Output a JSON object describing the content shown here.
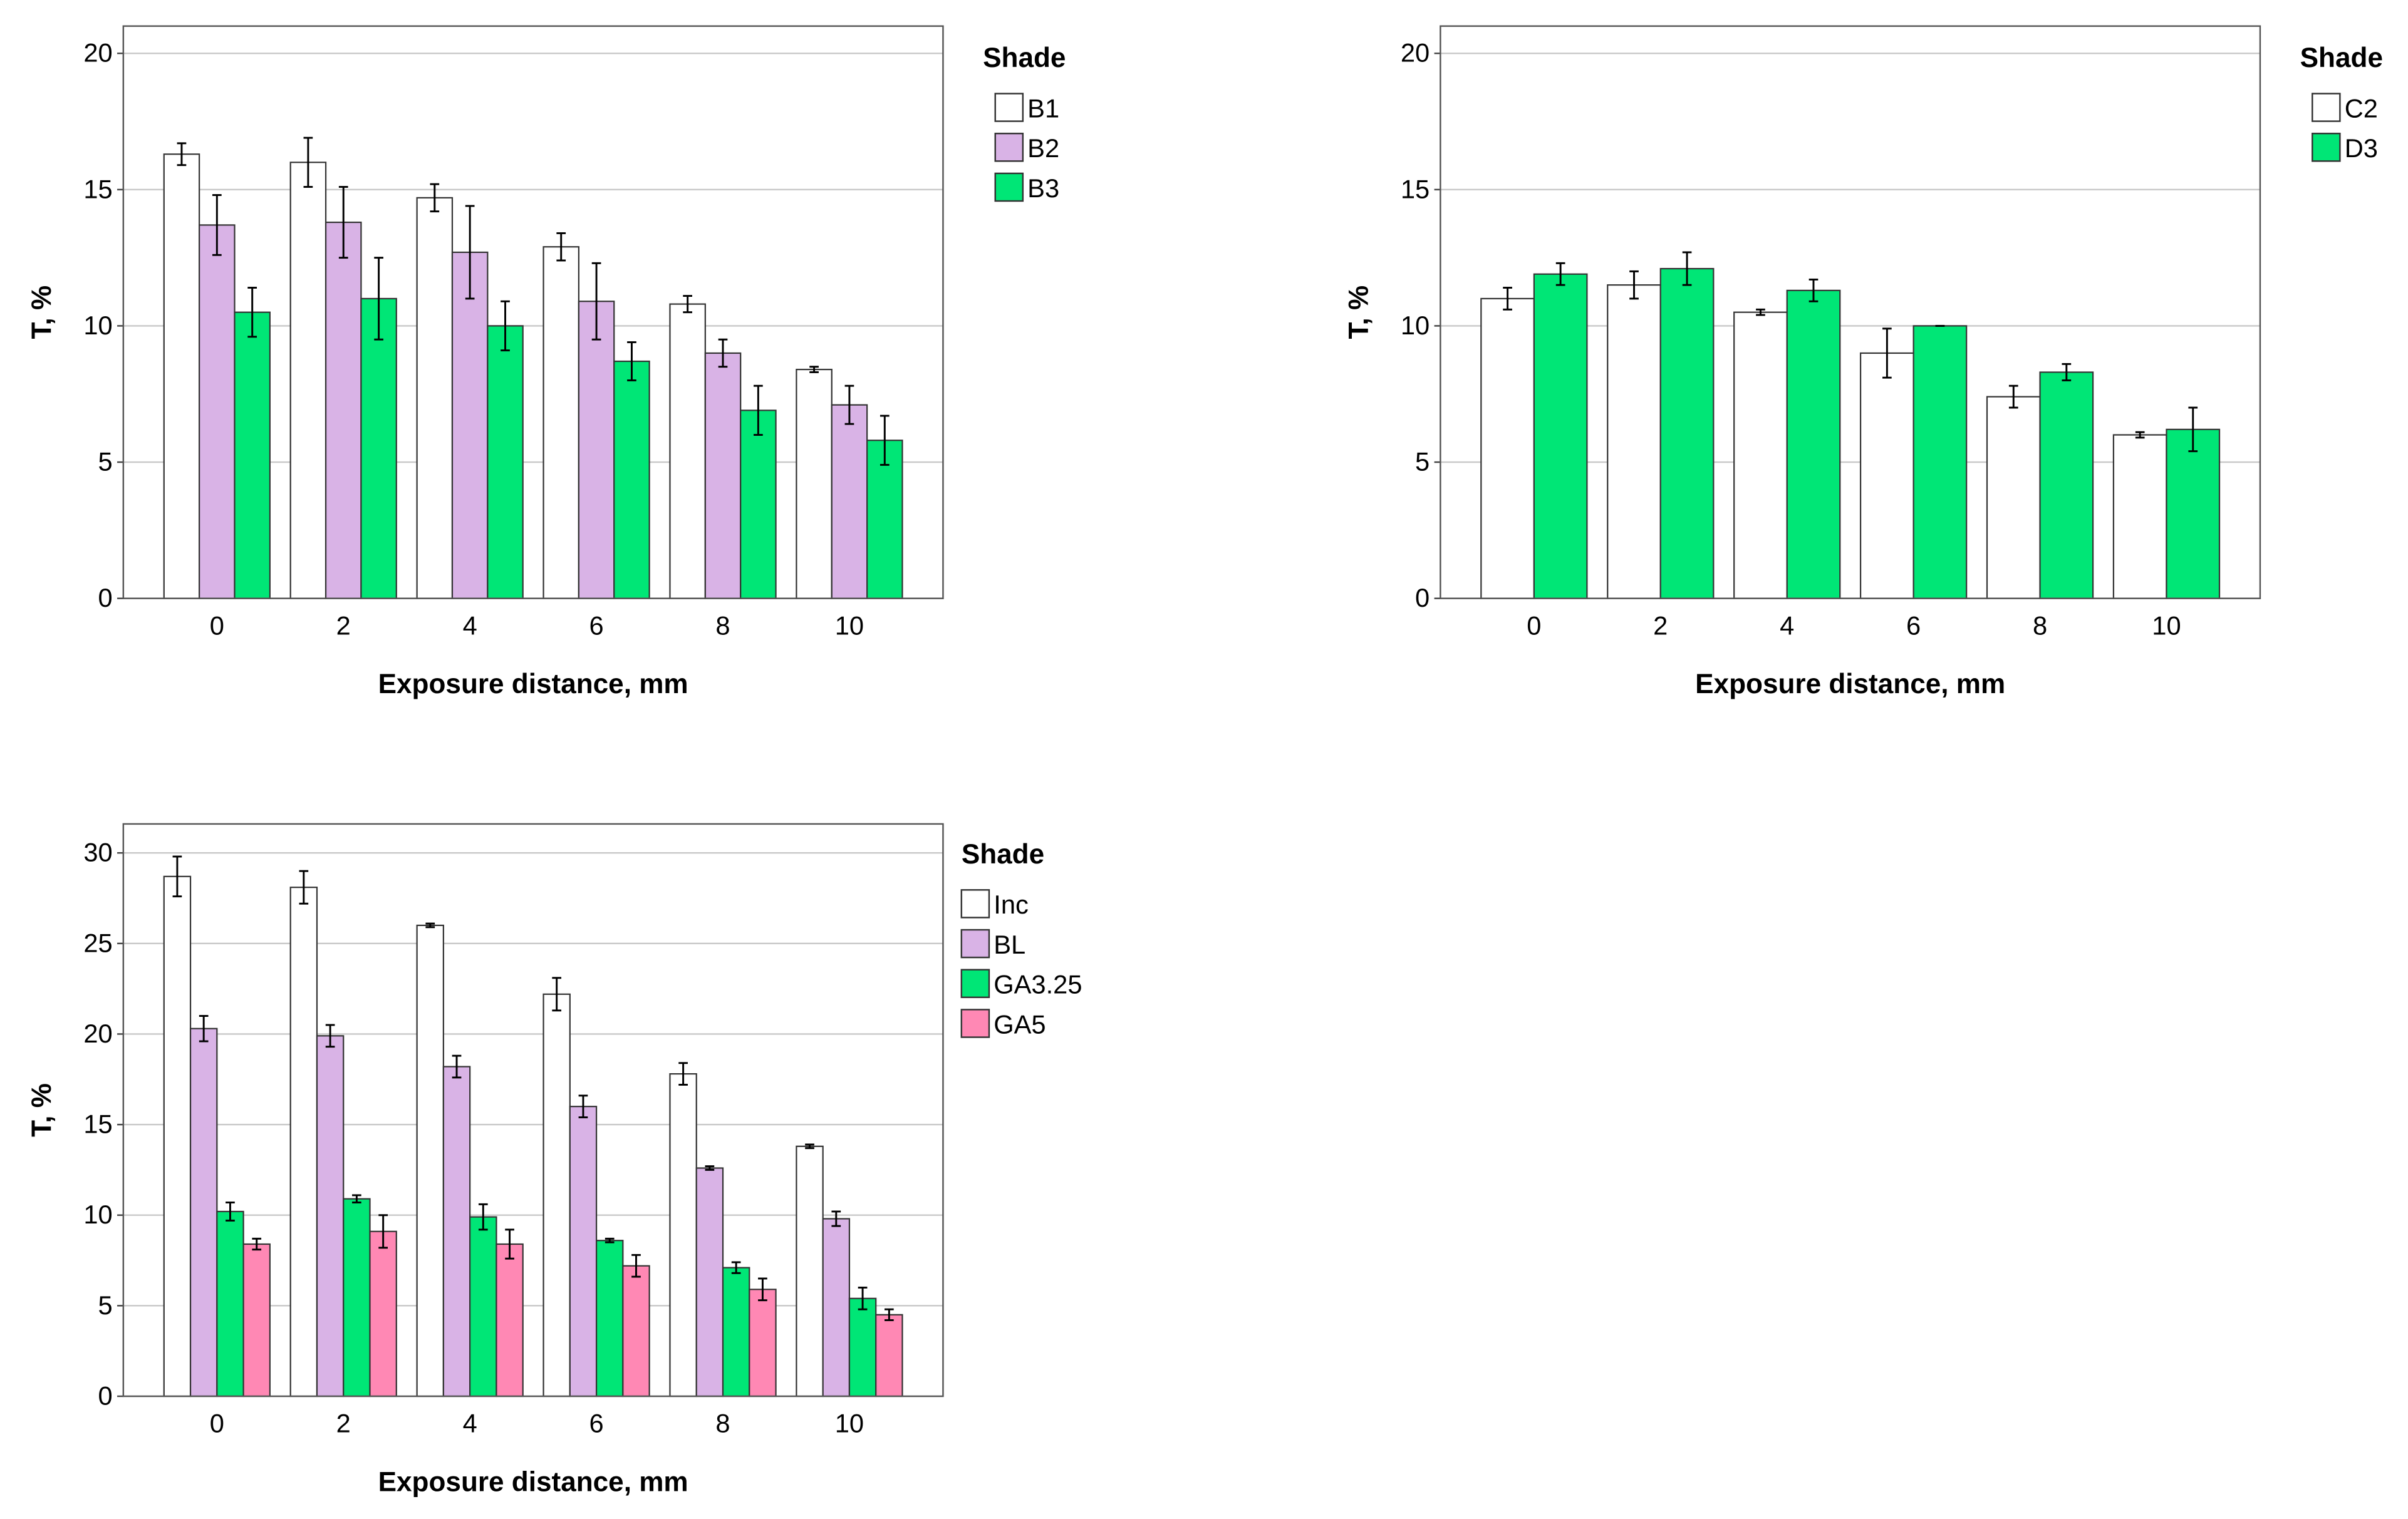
{
  "chart_data": [
    {
      "type": "bar",
      "xlabel": "Exposure distance, mm",
      "ylabel": "T, %",
      "legend_title": "Shade",
      "categories": [
        "0",
        "2",
        "4",
        "6",
        "8",
        "10"
      ],
      "series": [
        {
          "name": "B1",
          "color": "#ffffff",
          "values": [
            16.3,
            16.0,
            14.7,
            12.9,
            10.8,
            8.4
          ],
          "errors": [
            0.4,
            0.9,
            0.5,
            0.5,
            0.3,
            0.1
          ]
        },
        {
          "name": "B2",
          "color": "#d9b3e6",
          "values": [
            13.7,
            13.8,
            12.7,
            10.9,
            9.0,
            7.1
          ],
          "errors": [
            1.1,
            1.3,
            1.7,
            1.4,
            0.5,
            0.7
          ]
        },
        {
          "name": "B3",
          "color": "#00e676",
          "values": [
            10.5,
            11.0,
            10.0,
            8.7,
            6.9,
            5.8
          ],
          "errors": [
            0.9,
            1.5,
            0.9,
            0.7,
            0.9,
            0.9
          ]
        }
      ],
      "ylim": [
        0,
        21
      ],
      "yticks": [
        0,
        5,
        10,
        15,
        20
      ],
      "grid": true
    },
    {
      "type": "bar",
      "xlabel": "Exposure distance, mm",
      "ylabel": "T, %",
      "legend_title": "Shade",
      "categories": [
        "0",
        "2",
        "4",
        "6",
        "8",
        "10"
      ],
      "series": [
        {
          "name": "C2",
          "color": "#ffffff",
          "values": [
            11.0,
            11.5,
            10.5,
            9.0,
            7.4,
            6.0
          ],
          "errors": [
            0.4,
            0.5,
            0.1,
            0.9,
            0.4,
            0.1
          ]
        },
        {
          "name": "D3",
          "color": "#00e676",
          "values": [
            11.9,
            12.1,
            11.3,
            10.0,
            8.3,
            6.2
          ],
          "errors": [
            0.4,
            0.6,
            0.4,
            0.0,
            0.3,
            0.8
          ]
        }
      ],
      "ylim": [
        0,
        21
      ],
      "yticks": [
        0,
        5,
        10,
        15,
        20
      ],
      "grid": true
    },
    {
      "type": "bar",
      "xlabel": "Exposure distance, mm",
      "ylabel": "T, %",
      "legend_title": "Shade",
      "categories": [
        "0",
        "2",
        "4",
        "6",
        "8",
        "10"
      ],
      "series": [
        {
          "name": "Inc",
          "color": "#ffffff",
          "values": [
            28.7,
            28.1,
            26.0,
            22.2,
            17.8,
            13.8
          ],
          "errors": [
            1.1,
            0.9,
            0.1,
            0.9,
            0.6,
            0.1
          ]
        },
        {
          "name": "BL",
          "color": "#d9b3e6",
          "values": [
            20.3,
            19.9,
            18.2,
            16.0,
            12.6,
            9.8
          ],
          "errors": [
            0.7,
            0.6,
            0.6,
            0.6,
            0.1,
            0.4
          ]
        },
        {
          "name": "GA3.25",
          "color": "#00e676",
          "values": [
            10.2,
            10.9,
            9.9,
            8.6,
            7.1,
            5.4
          ],
          "errors": [
            0.5,
            0.2,
            0.7,
            0.1,
            0.3,
            0.6
          ]
        },
        {
          "name": "GA5",
          "color": "#ff88b4",
          "values": [
            8.4,
            9.1,
            8.4,
            7.2,
            5.9,
            4.5
          ],
          "errors": [
            0.3,
            0.9,
            0.8,
            0.6,
            0.6,
            0.3
          ]
        }
      ],
      "ylim": [
        0,
        31.6
      ],
      "yticks": [
        0,
        5,
        10,
        15,
        20,
        25,
        30
      ],
      "grid": true
    }
  ]
}
